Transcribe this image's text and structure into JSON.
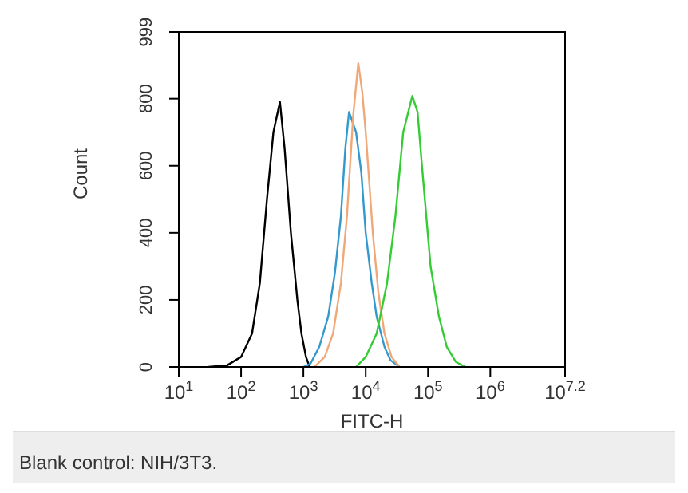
{
  "chart_data": {
    "type": "line",
    "xlabel": "FITC-H",
    "ylabel": "Count",
    "log": "x",
    "marker": "none",
    "line_style": "solid",
    "xlim": [
      10,
      15848932
    ],
    "xticks": [
      {
        "value": 10,
        "label": "10$^{1}$"
      },
      {
        "value": 100,
        "label": "10$^{2}$"
      },
      {
        "value": 1000,
        "label": "10$^{3}$"
      },
      {
        "value": 10000,
        "label": "10$^{4}$"
      },
      {
        "value": 100000,
        "label": "10$^{5}$"
      },
      {
        "value": 1000000,
        "label": "10$^{6}$"
      },
      {
        "value": 15848932,
        "label": "10$^{7.2}$"
      }
    ],
    "ylim": [
      0,
      999
    ],
    "yticks": [
      0,
      200,
      400,
      600,
      800,
      999
    ],
    "series": [
      {
        "color": "#000000",
        "x": [
          30,
          60,
          100,
          150,
          200,
          260,
          330,
          420,
          500,
          630,
          800,
          930,
          1100,
          1260
        ],
        "values": [
          0,
          5,
          30,
          100,
          250,
          500,
          700,
          790,
          650,
          400,
          200,
          100,
          30,
          0
        ]
      },
      {
        "color": "#3399cc",
        "x": [
          1000,
          1300,
          1800,
          2500,
          3200,
          4000,
          4700,
          5400,
          7000,
          8500,
          10000,
          12500,
          15000,
          20000,
          25000,
          35000
        ],
        "values": [
          0,
          10,
          60,
          150,
          280,
          450,
          650,
          760,
          700,
          580,
          400,
          250,
          150,
          60,
          20,
          0
        ]
      },
      {
        "color": "#f0a878",
        "x": [
          1500,
          2200,
          3000,
          4000,
          5000,
          6300,
          7600,
          8800,
          10000,
          13000,
          16000,
          20000,
          26000,
          35000
        ],
        "values": [
          0,
          30,
          100,
          250,
          450,
          750,
          906,
          820,
          700,
          400,
          220,
          100,
          30,
          0
        ]
      },
      {
        "color": "#33cc33",
        "x": [
          7000,
          10000,
          15000,
          22000,
          30000,
          40000,
          56000,
          68000,
          80000,
          110000,
          150000,
          200000,
          280000,
          400000
        ],
        "values": [
          0,
          30,
          100,
          250,
          450,
          700,
          808,
          760,
          600,
          300,
          150,
          60,
          15,
          0
        ]
      }
    ],
    "annotations": [
      "Blank control: NIH/3T3."
    ]
  }
}
